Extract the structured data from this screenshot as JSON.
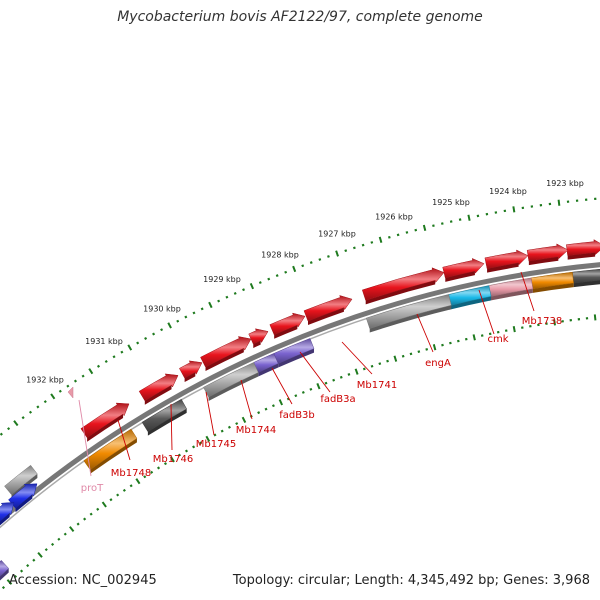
{
  "title": "Mycobacterium bovis AF2122/97, complete genome",
  "footer": {
    "accession": "Accession: NC_002945",
    "summary": "Topology: circular; Length: 4,345,492 bp; Genes: 3,968"
  },
  "colors": {
    "red": "#e8141d",
    "orange": "#f08a00",
    "cyan": "#1ab8e8",
    "pink": "#e89aa8",
    "purple": "#7a63cf",
    "gray": "#a8a8a8",
    "dark_gray": "#585858",
    "blue": "#1f2fe8",
    "label_red": "#cc0000",
    "label_pink": "#e08aa8",
    "tick_green": "#1e7a1e",
    "backbone": "#777777"
  },
  "scale_labels": [
    {
      "text": "1923 kbp"
    },
    {
      "text": "1924 kbp"
    },
    {
      "text": "1925 kbp"
    },
    {
      "text": "1926 kbp"
    },
    {
      "text": "1927 kbp"
    },
    {
      "text": "1928 kbp"
    },
    {
      "text": "1929 kbp"
    },
    {
      "text": "1930 kbp"
    },
    {
      "text": "1931 kbp"
    },
    {
      "text": "1932 kbp"
    }
  ],
  "gene_labels": [
    {
      "text": "Mb1738",
      "color": "red"
    },
    {
      "text": "cmk",
      "color": "red"
    },
    {
      "text": "engA",
      "color": "red"
    },
    {
      "text": "Mb1741",
      "color": "red"
    },
    {
      "text": "fadB3a",
      "color": "red"
    },
    {
      "text": "fadB3b",
      "color": "red"
    },
    {
      "text": "Mb1744",
      "color": "red"
    },
    {
      "text": "Mb1745",
      "color": "red"
    },
    {
      "text": "Mb1746",
      "color": "red"
    },
    {
      "text": "Mb1748",
      "color": "red"
    },
    {
      "text": "proT",
      "color": "pink"
    }
  ]
}
